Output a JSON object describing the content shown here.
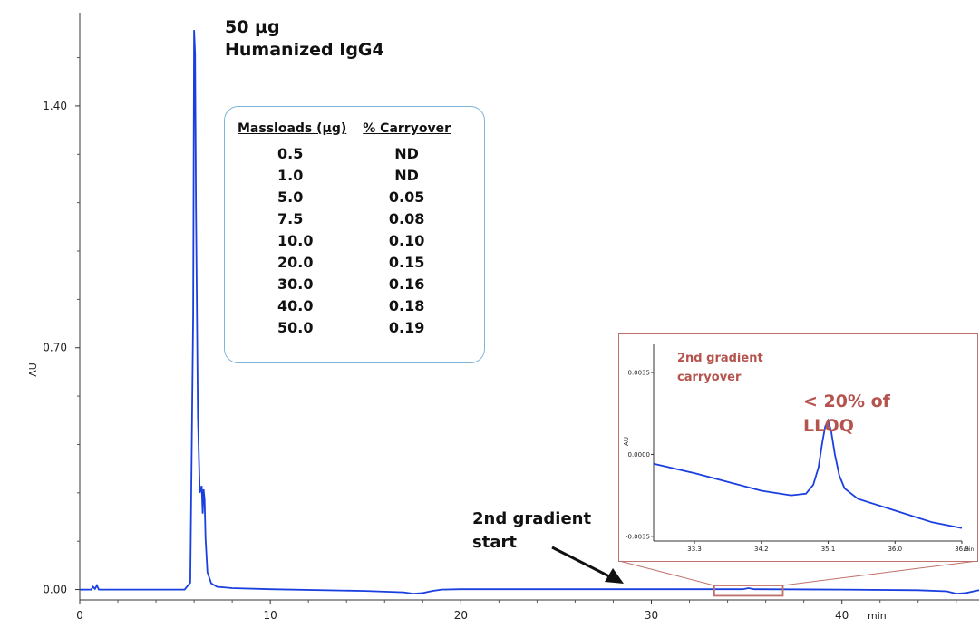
{
  "chart_data": [
    {
      "type": "line",
      "ylabel": "AU",
      "x_unit_label": "min",
      "xlim": [
        0,
        47.2
      ],
      "ylim": [
        -0.03,
        1.67
      ],
      "x_ticks": [
        {
          "value": 0,
          "label": "0"
        },
        {
          "value": 10,
          "label": "10"
        },
        {
          "value": 20,
          "label": "20"
        },
        {
          "value": 30,
          "label": "30"
        },
        {
          "value": 40,
          "label": "40"
        }
      ],
      "y_ticks": [
        {
          "value": 0,
          "label": "0.00"
        },
        {
          "value": 0.7,
          "label": "0.70"
        },
        {
          "value": 1.4,
          "label": "1.40"
        }
      ],
      "line_color": "#1a3fe0",
      "series": [
        {
          "x": [
            0,
            0.6,
            0.7,
            0.8,
            0.9,
            1.0,
            2,
            4,
            5.5,
            5.8,
            5.95,
            6.0,
            6.05,
            6.1,
            6.2,
            6.3,
            6.4,
            6.45,
            6.5,
            6.55,
            6.6,
            6.7,
            6.9,
            7.2,
            8,
            10,
            15,
            17,
            17.5,
            18,
            18.5,
            19,
            20,
            25,
            30,
            34.8,
            35.1,
            35.4,
            40,
            44,
            45.5,
            46,
            46.5,
            47,
            47.2
          ],
          "y": [
            0,
            0,
            0.008,
            0.002,
            0.012,
            0,
            0,
            0,
            0,
            0.02,
            0.8,
            1.62,
            1.55,
            1.1,
            0.5,
            0.28,
            0.3,
            0.22,
            0.29,
            0.26,
            0.15,
            0.05,
            0.018,
            0.008,
            0.004,
            0.001,
            -0.004,
            -0.008,
            -0.012,
            -0.01,
            -0.004,
            0,
            0.001,
            0.001,
            0.001,
            0.001,
            0.004,
            0.001,
            0,
            -0.002,
            -0.005,
            -0.012,
            -0.01,
            -0.004,
            -0.002
          ]
        }
      ],
      "annotations": {
        "peak_label": [
          "50 µg",
          "Humanized IgG4"
        ],
        "gradient_label": [
          "2nd gradient",
          "start"
        ],
        "zoom_region": {
          "x": [
            33.3,
            36.9
          ]
        }
      },
      "table": {
        "columns": [
          "Massloads (µg)",
          "% Carryover"
        ],
        "rows": [
          [
            "0.5",
            "ND"
          ],
          [
            "1.0",
            "ND"
          ],
          [
            "5.0",
            "0.05"
          ],
          [
            "7.5",
            "0.08"
          ],
          [
            "10.0",
            "0.10"
          ],
          [
            "20.0",
            "0.15"
          ],
          [
            "30.0",
            "0.16"
          ],
          [
            "40.0",
            "0.18"
          ],
          [
            "50.0",
            "0.19"
          ]
        ]
      }
    },
    {
      "type": "line",
      "title_lines": [
        "2nd gradient",
        "carryover"
      ],
      "ylabel": "AU",
      "x_unit_label": "min",
      "xlim": [
        32.75,
        36.9
      ],
      "ylim": [
        -0.0037,
        0.0047
      ],
      "x_ticks": [
        {
          "value": 33.3,
          "label": "33.3"
        },
        {
          "value": 34.2,
          "label": "34.2"
        },
        {
          "value": 35.1,
          "label": "35.1"
        },
        {
          "value": 36.0,
          "label": "36.0"
        },
        {
          "value": 36.9,
          "label": "36.9"
        }
      ],
      "y_ticks": [
        {
          "value": 0.0035,
          "label": "0.0035"
        },
        {
          "value": 0.0,
          "label": "0.0000"
        },
        {
          "value": -0.0035,
          "label": "-0.0035"
        }
      ],
      "line_color": "#1a3fe0",
      "peak_note": [
        "< 20% of",
        "LLOQ"
      ],
      "series": [
        {
          "x": [
            32.75,
            33.3,
            34.2,
            34.6,
            34.8,
            34.9,
            34.97,
            35.02,
            35.06,
            35.1,
            35.14,
            35.19,
            35.25,
            35.32,
            35.5,
            36.0,
            36.5,
            36.9
          ],
          "y": [
            -0.0004,
            -0.0008,
            -0.00155,
            -0.00175,
            -0.00168,
            -0.0013,
            -0.00055,
            0.0005,
            0.0012,
            0.00145,
            0.001,
            0.0,
            -0.0009,
            -0.00145,
            -0.0019,
            -0.0024,
            -0.0029,
            -0.00315
          ]
        }
      ]
    }
  ]
}
